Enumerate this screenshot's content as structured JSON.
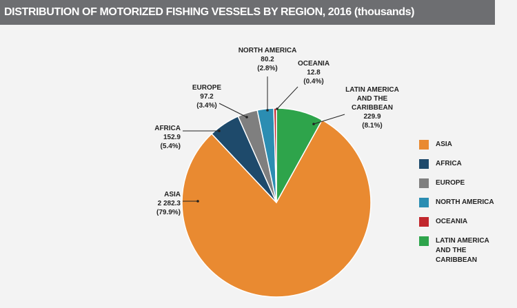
{
  "chart_data": {
    "type": "pie",
    "title": "DISTRIBUTION OF MOTORIZED FISHING VESSELS BY REGION, 2016 (thousands)",
    "categories": [
      "LATIN AMERICA AND THE CARIBBEAN",
      "ASIA",
      "AFRICA",
      "EUROPE",
      "NORTH AMERICA",
      "OCEANIA"
    ],
    "values": [
      229.9,
      2282.3,
      152.9,
      97.2,
      80.2,
      12.8
    ],
    "value_labels": [
      "229.9",
      "2 282.3",
      "152.9",
      "97.2",
      "80.2",
      "12.8"
    ],
    "percent_labels": [
      "(8.1%)",
      "(79.9%)",
      "(5.4%)",
      "(3.4%)",
      "(2.8%)",
      "(0.4%)"
    ],
    "colors": [
      "#2ea44b",
      "#e98a31",
      "#1e4a6b",
      "#7f7f7f",
      "#2b8db2",
      "#c1272d"
    ],
    "legend_order": [
      1,
      2,
      3,
      4,
      5,
      0
    ],
    "legend": "right"
  }
}
